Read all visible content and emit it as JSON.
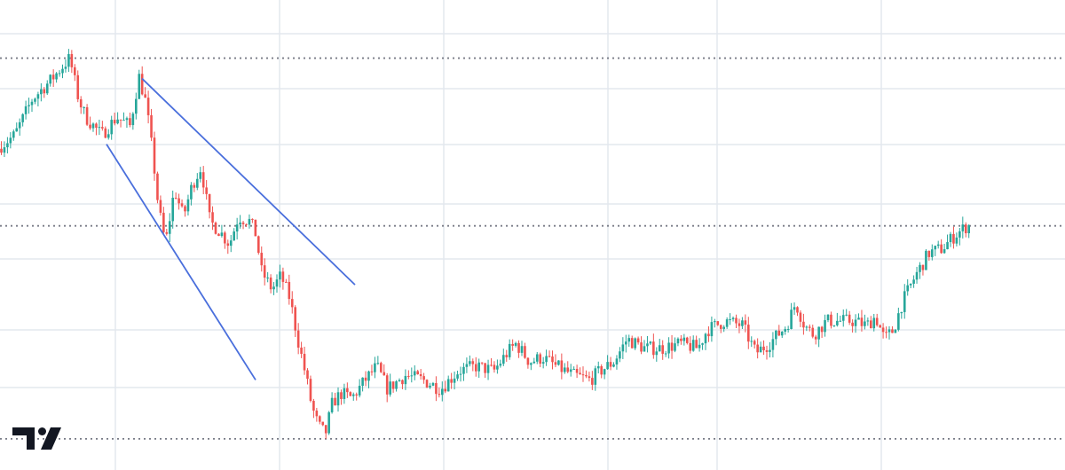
{
  "logo": {
    "name": "TV",
    "color": "#131722"
  },
  "colors": {
    "background": "#ffffff",
    "grid": "#e3e8ee",
    "up": "#26a69a",
    "down": "#ef5350",
    "trendline": "#4a6fdc",
    "dotted_level": "#787b86"
  },
  "chart_data": {
    "type": "candlestick",
    "grid": true,
    "y_scale": "linear",
    "y_range": [
      10,
      100
    ],
    "x_range": [
      0,
      1200
    ],
    "price_axis_labels": "none",
    "horizontal_levels": [
      {
        "style": "dotted",
        "value": 95
      },
      {
        "style": "dotted",
        "value": 58
      },
      {
        "style": "dotted",
        "value": 11
      }
    ],
    "trendlines": [
      {
        "label": "",
        "points": [
          [
            160,
            90.5
          ],
          [
            400,
            45
          ]
        ]
      },
      {
        "label": "",
        "points": [
          [
            120,
            76
          ],
          [
            288,
            24
          ]
        ]
      }
    ],
    "price_path_keypoints": [
      [
        0,
        75
      ],
      [
        20,
        78
      ],
      [
        40,
        86
      ],
      [
        60,
        90
      ],
      [
        82,
        95
      ],
      [
        92,
        86
      ],
      [
        100,
        82
      ],
      [
        118,
        78
      ],
      [
        135,
        82
      ],
      [
        150,
        80
      ],
      [
        160,
        91
      ],
      [
        168,
        85
      ],
      [
        176,
        73
      ],
      [
        182,
        62
      ],
      [
        190,
        54
      ],
      [
        200,
        66
      ],
      [
        210,
        60
      ],
      [
        220,
        67
      ],
      [
        230,
        71
      ],
      [
        240,
        59
      ],
      [
        250,
        57
      ],
      [
        262,
        54
      ],
      [
        272,
        60
      ],
      [
        285,
        59
      ],
      [
        292,
        56
      ],
      [
        298,
        48
      ],
      [
        310,
        44
      ],
      [
        320,
        47
      ],
      [
        330,
        42
      ],
      [
        340,
        32
      ],
      [
        348,
        25
      ],
      [
        355,
        18
      ],
      [
        362,
        14
      ],
      [
        370,
        12
      ],
      [
        378,
        19
      ],
      [
        388,
        21
      ],
      [
        400,
        20
      ],
      [
        415,
        24
      ],
      [
        428,
        27
      ],
      [
        440,
        22
      ],
      [
        460,
        25
      ],
      [
        480,
        24
      ],
      [
        500,
        22
      ],
      [
        520,
        26
      ],
      [
        540,
        27
      ],
      [
        560,
        26
      ],
      [
        575,
        30
      ],
      [
        585,
        32
      ],
      [
        600,
        28
      ],
      [
        615,
        29
      ],
      [
        630,
        27
      ],
      [
        650,
        25
      ],
      [
        668,
        24
      ],
      [
        680,
        26
      ],
      [
        695,
        28
      ],
      [
        710,
        33
      ],
      [
        730,
        31
      ],
      [
        750,
        31
      ],
      [
        770,
        32
      ],
      [
        790,
        31
      ],
      [
        800,
        35
      ],
      [
        820,
        37
      ],
      [
        840,
        36
      ],
      [
        855,
        30
      ],
      [
        870,
        32
      ],
      [
        890,
        36
      ],
      [
        900,
        41
      ],
      [
        910,
        36
      ],
      [
        920,
        34
      ],
      [
        935,
        37
      ],
      [
        950,
        37
      ],
      [
        965,
        37
      ],
      [
        980,
        36
      ],
      [
        990,
        38
      ],
      [
        1000,
        33
      ],
      [
        1010,
        35
      ],
      [
        1020,
        41
      ],
      [
        1035,
        47
      ],
      [
        1050,
        52
      ],
      [
        1065,
        53
      ],
      [
        1080,
        56
      ],
      [
        1093,
        58
      ]
    ]
  }
}
